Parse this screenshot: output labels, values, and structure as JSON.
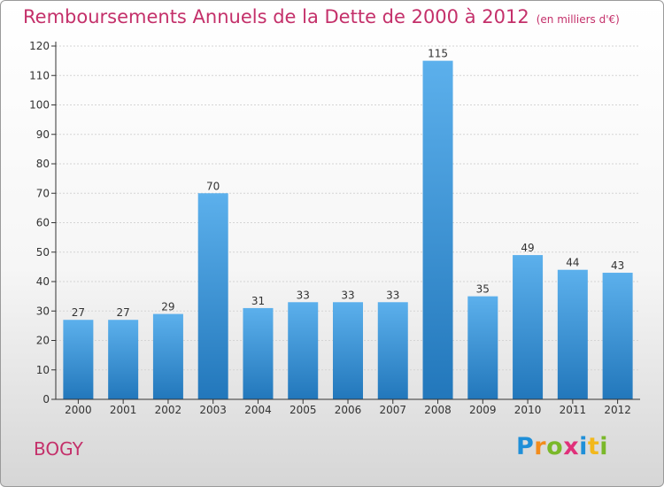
{
  "title": "Remboursements Annuels de la Dette de 2000 à 2012",
  "subtitle": "(en milliers d'€)",
  "commune": "BOGY",
  "logo": {
    "text": "Proxiti",
    "letters": [
      {
        "char": "P",
        "color": "#1f8fd8"
      },
      {
        "char": "r",
        "color": "#f28c1c"
      },
      {
        "char": "o",
        "color": "#7ab829"
      },
      {
        "char": "x",
        "color": "#e0307a"
      },
      {
        "char": "i",
        "color": "#1f8fd8"
      },
      {
        "char": "t",
        "color": "#f2b81c"
      },
      {
        "char": "i",
        "color": "#7ab829"
      }
    ]
  },
  "colors": {
    "title": "#c4306a",
    "bar_top": "#5cb0ec",
    "bar_bottom": "#2277bb",
    "axis": "#333333"
  },
  "chart_data": {
    "type": "bar",
    "title": "Remboursements Annuels de la Dette de 2000 à 2012",
    "subtitle": "(en milliers d'€)",
    "categories": [
      "2000",
      "2001",
      "2002",
      "2003",
      "2004",
      "2005",
      "2006",
      "2007",
      "2008",
      "2009",
      "2010",
      "2011",
      "2012"
    ],
    "values": [
      27,
      27,
      29,
      70,
      31,
      33,
      33,
      33,
      115,
      35,
      49,
      44,
      43
    ],
    "ylim": [
      0,
      120
    ],
    "yticks": [
      0,
      10,
      20,
      30,
      40,
      50,
      60,
      70,
      80,
      90,
      100,
      110,
      120
    ],
    "grid": true
  }
}
